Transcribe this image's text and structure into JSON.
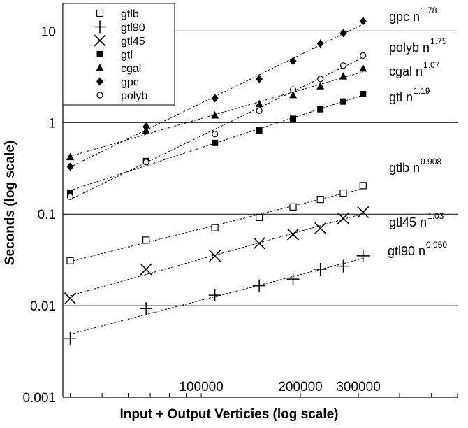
{
  "chart_data": {
    "type": "scatter",
    "xscale": "log",
    "yscale": "log",
    "xlabel": "Input + Output Verticies (log scale)",
    "ylabel": "Seconds (log scale)",
    "xlim": [
      38000,
      600000
    ],
    "ylim": [
      0.001,
      20
    ],
    "x_ticks": [
      {
        "value": 100000,
        "label": "100000"
      },
      {
        "value": 200000,
        "label": "200000"
      },
      {
        "value": 300000,
        "label": "300000"
      }
    ],
    "y_ticks": [
      {
        "value": 0.001,
        "label": "0.001"
      },
      {
        "value": 0.01,
        "label": "0.01"
      },
      {
        "value": 0.1,
        "label": "0.1"
      },
      {
        "value": 1,
        "label": "1"
      },
      {
        "value": 10,
        "label": "10"
      }
    ],
    "grid": "horizontal",
    "legend_position": "top-left",
    "series": [
      {
        "name": "gtlb",
        "marker": "open-square",
        "x": [
          40000,
          68000,
          110000,
          150000,
          190000,
          230000,
          270000,
          310000
        ],
        "y": [
          0.031,
          0.052,
          0.071,
          0.092,
          0.12,
          0.145,
          0.17,
          0.205
        ]
      },
      {
        "name": "gtl90",
        "marker": "plus",
        "x": [
          40000,
          68000,
          110000,
          150000,
          190000,
          230000,
          270000,
          310000
        ],
        "y": [
          0.0044,
          0.0093,
          0.013,
          0.0165,
          0.0195,
          0.025,
          0.027,
          0.035
        ]
      },
      {
        "name": "gtl45",
        "marker": "x",
        "x": [
          40000,
          68000,
          110000,
          150000,
          190000,
          230000,
          270000,
          310000
        ],
        "y": [
          0.012,
          0.025,
          0.035,
          0.048,
          0.06,
          0.07,
          0.09,
          0.105
        ]
      },
      {
        "name": "gtl",
        "marker": "filled-square",
        "x": [
          40000,
          68000,
          110000,
          150000,
          190000,
          230000,
          270000,
          310000
        ],
        "y": [
          0.17,
          0.38,
          0.6,
          0.82,
          1.1,
          1.4,
          1.7,
          2.05
        ]
      },
      {
        "name": "cgal",
        "marker": "filled-triangle",
        "x": [
          40000,
          68000,
          110000,
          150000,
          190000,
          230000,
          270000,
          310000
        ],
        "y": [
          0.42,
          0.82,
          1.2,
          1.6,
          2.0,
          2.5,
          3.2,
          3.9
        ]
      },
      {
        "name": "gpc",
        "marker": "filled-diamond",
        "x": [
          40000,
          68000,
          110000,
          150000,
          190000,
          230000,
          270000,
          310000
        ],
        "y": [
          0.33,
          0.9,
          1.85,
          3.0,
          4.7,
          7.3,
          9.5,
          12.8
        ]
      },
      {
        "name": "polyb",
        "marker": "open-circle",
        "x": [
          40000,
          68000,
          110000,
          150000,
          190000,
          230000,
          270000,
          310000
        ],
        "y": [
          0.155,
          0.37,
          0.75,
          1.35,
          2.3,
          3.0,
          4.2,
          5.4
        ]
      }
    ],
    "annotations": [
      {
        "series": "gpc",
        "base": "gpc n",
        "exponent": "1.78"
      },
      {
        "series": "polyb",
        "base": "polyb n",
        "exponent": "1.75"
      },
      {
        "series": "cgal",
        "base": "cgal n",
        "exponent": "1.07"
      },
      {
        "series": "gtl",
        "base": "gtl n",
        "exponent": "1.19"
      },
      {
        "series": "gtlb",
        "base": "gtlb n",
        "exponent": "0.908"
      },
      {
        "series": "gtl45",
        "base": "gtl45 n",
        "exponent": "1.03"
      },
      {
        "series": "gtl90",
        "base": "gtl90 n",
        "exponent": "0.950"
      }
    ]
  }
}
